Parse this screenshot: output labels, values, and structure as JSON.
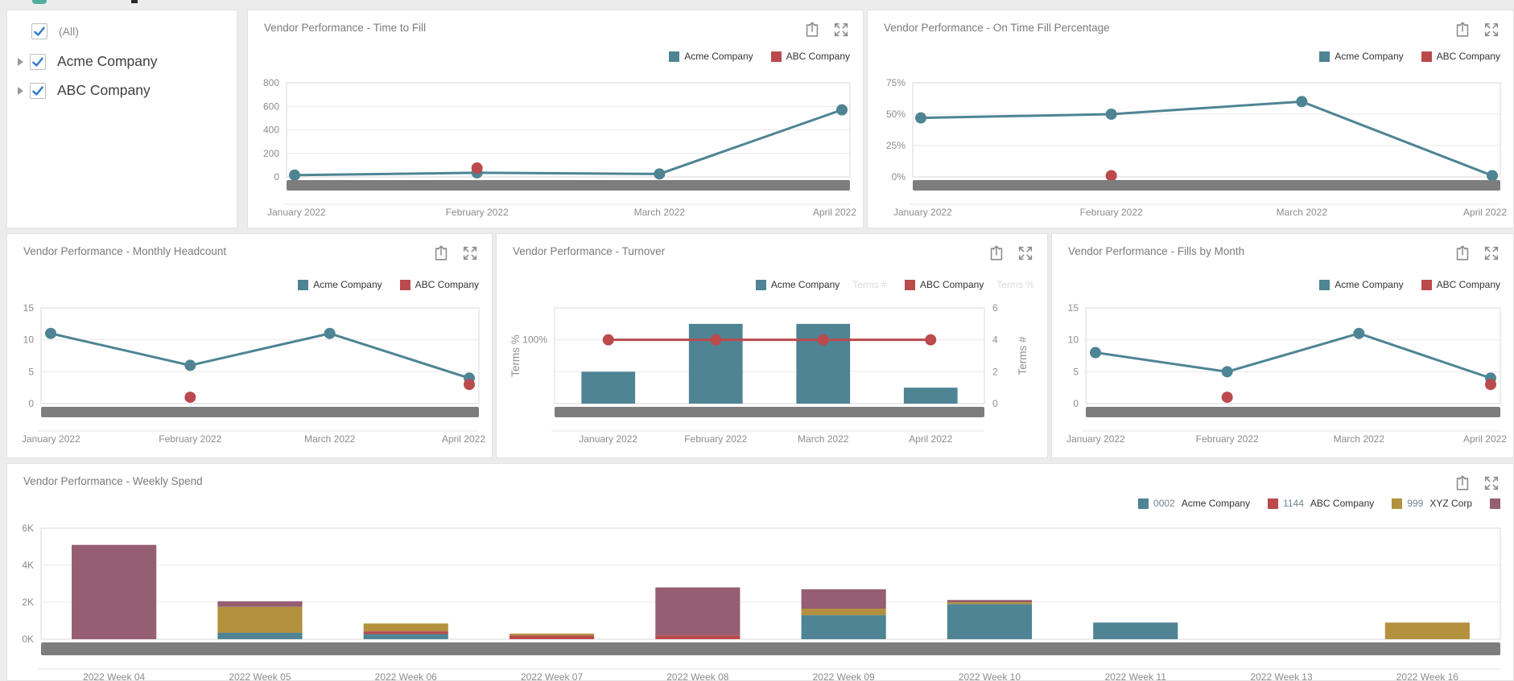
{
  "filter_panel": {
    "items": [
      {
        "label": "(All)",
        "checked": true,
        "expandable": false
      },
      {
        "label": "Acme Company",
        "checked": true,
        "expandable": true
      },
      {
        "label": "ABC Company",
        "checked": true,
        "expandable": true
      }
    ]
  },
  "colors": {
    "acme_teal": "#4e8494",
    "abc_red": "#bb4a4d",
    "xyz_gold": "#b3913f",
    "other_mauve": "#965e73",
    "scrollbar_gray": "#7d7d7d",
    "checkbox_check_blue": "#2d7ad1"
  },
  "chart_data": [
    {
      "id": "time_to_fill",
      "type": "line",
      "title": "Vendor Performance - Time to Fill",
      "categories": [
        "January 2022",
        "February 2022",
        "March 2022",
        "April 2022"
      ],
      "series": [
        {
          "name": "Acme Company",
          "color": "#4e8494",
          "values": [
            15,
            35,
            25,
            570
          ]
        },
        {
          "name": "ABC Company",
          "color": "#bb4a4d",
          "values": [
            null,
            75,
            null,
            null
          ]
        }
      ],
      "ylim": [
        0,
        800
      ],
      "yticks": [
        0,
        200,
        400,
        600,
        800
      ],
      "ytick_labels": [
        "0",
        "200",
        "400",
        "600",
        "800"
      ],
      "grid": true,
      "legend_position": "top-right"
    },
    {
      "id": "on_time_fill_percentage",
      "type": "line",
      "title": "Vendor Performance - On Time Fill Percentage",
      "categories": [
        "January 2022",
        "February 2022",
        "March 2022",
        "April 2022"
      ],
      "series": [
        {
          "name": "Acme Company",
          "color": "#4e8494",
          "values": [
            47,
            50,
            60,
            1
          ]
        },
        {
          "name": "ABC Company",
          "color": "#bb4a4d",
          "values": [
            null,
            1,
            null,
            null
          ]
        }
      ],
      "ylim": [
        0,
        75
      ],
      "yticks": [
        0,
        25,
        50,
        75
      ],
      "ytick_labels": [
        "0%",
        "25%",
        "50%",
        "75%"
      ],
      "grid": true,
      "legend_position": "top-right"
    },
    {
      "id": "monthly_headcount",
      "type": "line",
      "title": "Vendor Performance - Monthly Headcount",
      "categories": [
        "January 2022",
        "February 2022",
        "March 2022",
        "April 2022"
      ],
      "series": [
        {
          "name": "Acme Company",
          "color": "#4e8494",
          "values": [
            11,
            6,
            11,
            4
          ]
        },
        {
          "name": "ABC Company",
          "color": "#bb4a4d",
          "values": [
            null,
            1,
            null,
            3
          ]
        }
      ],
      "ylim": [
        0,
        15
      ],
      "yticks": [
        0,
        5,
        10,
        15
      ],
      "ytick_labels": [
        "0",
        "5",
        "10",
        "15"
      ],
      "grid": true,
      "legend_position": "top-right"
    },
    {
      "id": "turnover",
      "type": "combo",
      "title": "Vendor Performance - Turnover",
      "categories": [
        "January 2022",
        "February 2022",
        "March 2022",
        "April 2022"
      ],
      "y_left": {
        "title": "Terms %",
        "lim": [
          0,
          150
        ],
        "ticks": [
          100
        ],
        "tick_labels": [
          "100%"
        ]
      },
      "y_right": {
        "title": "Terms #",
        "lim": [
          0,
          6
        ],
        "ticks": [
          0,
          2,
          4,
          6
        ],
        "tick_labels": [
          "0",
          "2",
          "4",
          "6"
        ]
      },
      "series": [
        {
          "name": "Acme Company",
          "legend_suffix": "Terms #",
          "kind": "bar",
          "axis": "right",
          "color": "#4e8494",
          "values": [
            2,
            5,
            5,
            1
          ]
        },
        {
          "name": "ABC Company",
          "legend_suffix": "Terms %",
          "kind": "line",
          "axis": "left",
          "color": "#bb4a4d",
          "values": [
            100,
            100,
            100,
            100
          ]
        }
      ],
      "grid": true,
      "legend_position": "top-right"
    },
    {
      "id": "fills_by_month",
      "type": "line",
      "title": "Vendor Performance - Fills by Month",
      "categories": [
        "January 2022",
        "February 2022",
        "March 2022",
        "April 2022"
      ],
      "series": [
        {
          "name": "Acme Company",
          "color": "#4e8494",
          "values": [
            8,
            5,
            11,
            4
          ]
        },
        {
          "name": "ABC Company",
          "color": "#bb4a4d",
          "values": [
            null,
            1,
            null,
            3
          ]
        }
      ],
      "ylim": [
        0,
        15
      ],
      "yticks": [
        0,
        5,
        10,
        15
      ],
      "ytick_labels": [
        "0",
        "5",
        "10",
        "15"
      ],
      "grid": true,
      "legend_position": "top-right"
    },
    {
      "id": "weekly_spend",
      "type": "stacked_bar",
      "title": "Vendor Performance - Weekly Spend",
      "categories": [
        "2022 Week 04",
        "2022 Week 05",
        "2022 Week 06",
        "2022 Week 07",
        "2022 Week 08",
        "2022 Week 09",
        "2022 Week 10",
        "2022 Week 11",
        "2022 Week 13",
        "2022 Week 16"
      ],
      "series": [
        {
          "prefix": "0002",
          "name": "Acme Company",
          "color": "#4e8494",
          "values": [
            0,
            0.35,
            0.28,
            0,
            0,
            1.3,
            1.9,
            0.9,
            0,
            0
          ]
        },
        {
          "prefix": "1144",
          "name": "ABC Company",
          "color": "#bb4a4d",
          "values": [
            0,
            0,
            0.15,
            0.2,
            0.2,
            0,
            0,
            0,
            0,
            0
          ]
        },
        {
          "prefix": "999",
          "name": "XYZ Corp",
          "color": "#b3913f",
          "values": [
            0,
            1.4,
            0.42,
            0.1,
            0,
            0.35,
            0.1,
            0,
            0,
            0.9
          ]
        },
        {
          "prefix": "",
          "name": "",
          "color": "#965e73",
          "values": [
            5.1,
            0.3,
            0,
            0,
            2.6,
            1.05,
            0.12,
            0,
            0,
            0
          ]
        }
      ],
      "ylim": [
        0,
        6
      ],
      "yticks": [
        0,
        2,
        4,
        6
      ],
      "ytick_labels": [
        "0K",
        "2K",
        "4K",
        "6K"
      ],
      "grid": true,
      "legend_position": "top-right"
    }
  ]
}
